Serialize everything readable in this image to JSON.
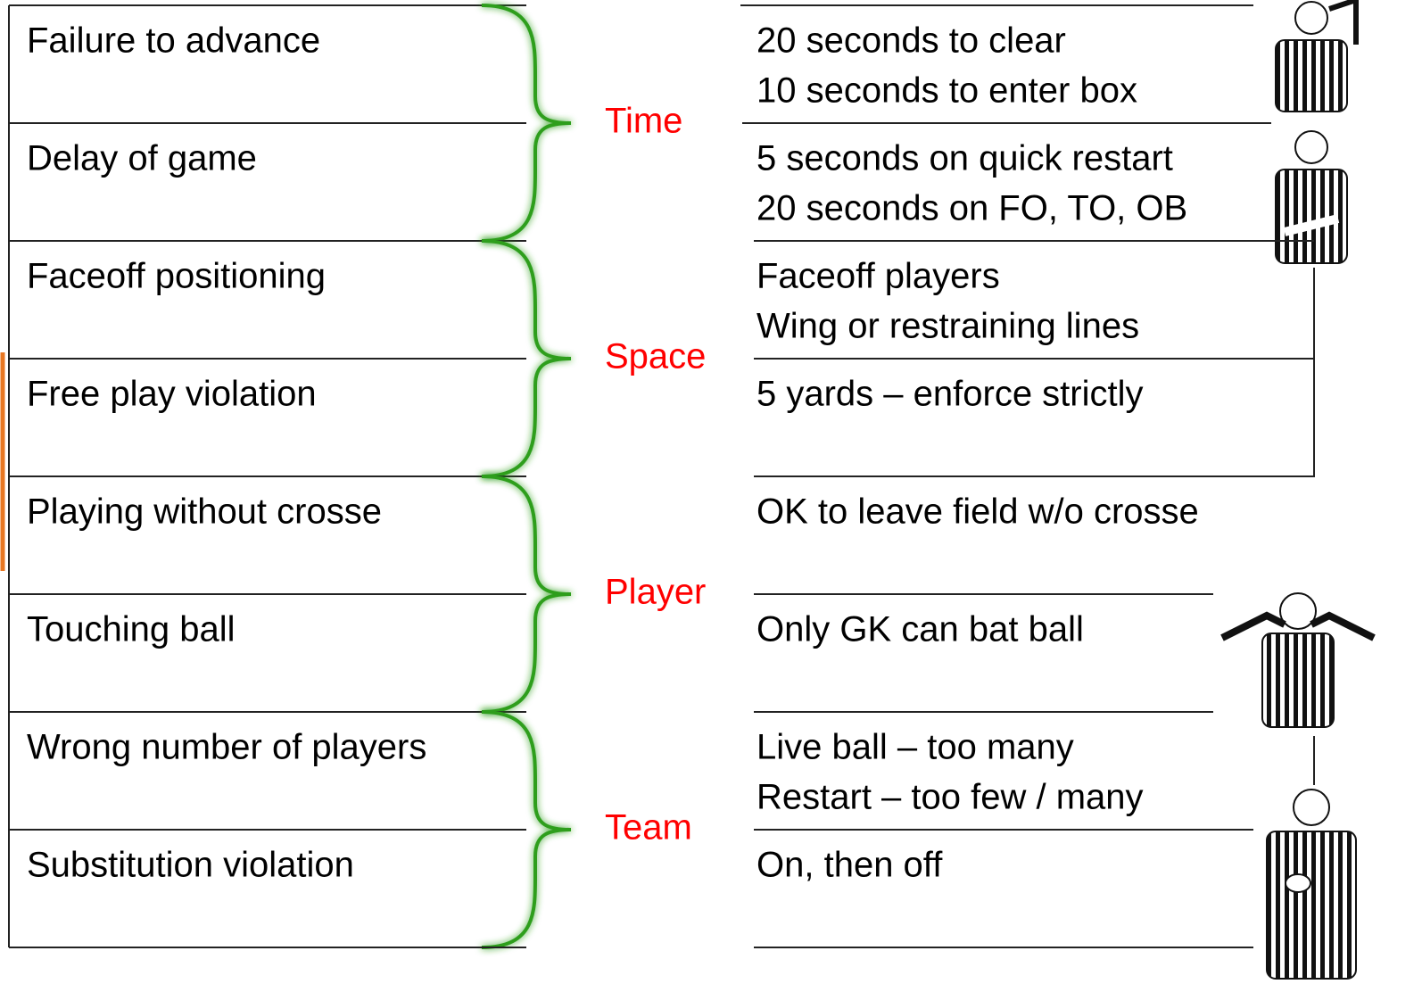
{
  "groups": [
    {
      "label": "Time",
      "rows": [
        {
          "violation": "Failure to advance",
          "details": [
            "20 seconds to clear",
            "10 seconds to enter box"
          ]
        },
        {
          "violation": "Delay of game",
          "details": [
            "5 seconds on quick restart",
            "20 seconds on FO, TO, OB"
          ]
        }
      ]
    },
    {
      "label": "Space",
      "rows": [
        {
          "violation": "Faceoff positioning",
          "details": [
            "Faceoff players",
            "Wing or restraining lines"
          ]
        },
        {
          "violation": "Free play violation",
          "details": [
            "5 yards – enforce strictly"
          ]
        }
      ]
    },
    {
      "label": "Player",
      "rows": [
        {
          "violation": "Playing without crosse",
          "details": [
            "OK to leave field w/o crosse"
          ]
        },
        {
          "violation": "Touching ball",
          "details": [
            "Only GK can bat ball"
          ]
        }
      ]
    },
    {
      "label": "Team",
      "rows": [
        {
          "violation": "Wrong number of players",
          "details": [
            "Live ball – too many",
            "Restart – too few / many"
          ]
        },
        {
          "violation": "Substitution violation",
          "details": [
            "On, then off"
          ]
        }
      ]
    }
  ]
}
